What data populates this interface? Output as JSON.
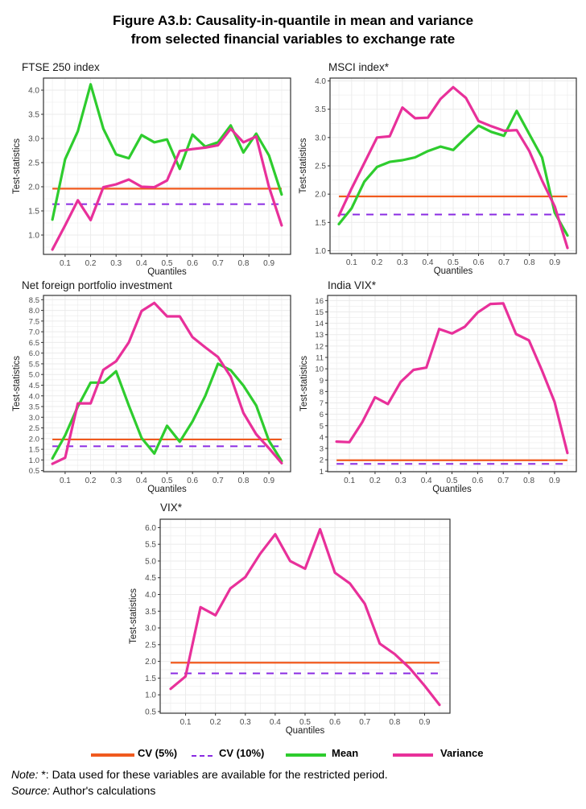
{
  "figure": {
    "title_line1": "Figure A3.b: Causality-in-quantile in mean and variance",
    "title_line2": "from selected financial variables to exchange rate"
  },
  "colors": {
    "cv5": "#f05a1e",
    "cv10": "#8a2be2",
    "mean": "#2ecc2e",
    "variance": "#e8309a",
    "grid": "#ebebeb",
    "axis_text": "#4d4d4d"
  },
  "legend": {
    "cv5": "CV (5%)",
    "cv10": "CV (10%)",
    "mean": "Mean",
    "variance": "Variance"
  },
  "note": {
    "label": "Note:",
    "text": " *: Data used for these variables are available for the restricted period."
  },
  "source": {
    "label": "Source:",
    "text": " Author's calculations"
  },
  "chart_data": [
    {
      "type": "line",
      "title": "FTSE 250 index",
      "xlabel": "Quantiles",
      "ylabel": "Test-statistics",
      "x": [
        0.05,
        0.1,
        0.15,
        0.2,
        0.25,
        0.3,
        0.35,
        0.4,
        0.45,
        0.5,
        0.55,
        0.6,
        0.65,
        0.7,
        0.75,
        0.8,
        0.85,
        0.9,
        0.95
      ],
      "xticks": [
        "0.1",
        "0.2",
        "0.3",
        "0.4",
        "0.5",
        "0.6",
        "0.7",
        "0.8",
        "0.9"
      ],
      "yticks": [
        "1.0",
        "1.5",
        "2.0",
        "2.5",
        "3.0",
        "3.5",
        "4.0"
      ],
      "ylim": [
        0.6,
        4.25
      ],
      "cv5": 1.96,
      "cv10": 1.64,
      "series": [
        {
          "name": "Mean",
          "values": [
            1.32,
            2.57,
            3.15,
            4.12,
            3.2,
            2.67,
            2.59,
            3.07,
            2.92,
            2.98,
            2.37,
            3.08,
            2.83,
            2.92,
            3.27,
            2.71,
            3.1,
            2.65,
            1.84
          ]
        },
        {
          "name": "Variance",
          "values": [
            0.7,
            1.2,
            1.72,
            1.31,
            1.99,
            2.05,
            2.15,
            2.0,
            1.99,
            2.13,
            2.74,
            2.78,
            2.81,
            2.86,
            3.2,
            2.92,
            3.04,
            2.0,
            1.2
          ]
        }
      ]
    },
    {
      "type": "line",
      "title": "MSCI index*",
      "xlabel": "Quantiles",
      "ylabel": "Test-statistics",
      "x": [
        0.05,
        0.1,
        0.15,
        0.2,
        0.25,
        0.3,
        0.35,
        0.4,
        0.45,
        0.5,
        0.55,
        0.6,
        0.65,
        0.7,
        0.75,
        0.8,
        0.85,
        0.9,
        0.95
      ],
      "xticks": [
        "0.1",
        "0.2",
        "0.3",
        "0.4",
        "0.5",
        "0.6",
        "0.7",
        "0.8",
        "0.9"
      ],
      "yticks": [
        "1.0",
        "1.5",
        "2.0",
        "2.5",
        "3.0",
        "3.5",
        "4.0"
      ],
      "ylim": [
        0.95,
        4.05
      ],
      "cv5": 1.96,
      "cv10": 1.64,
      "series": [
        {
          "name": "Mean",
          "values": [
            1.47,
            1.75,
            2.22,
            2.48,
            2.57,
            2.6,
            2.65,
            2.76,
            2.84,
            2.78,
            3.0,
            3.21,
            3.1,
            3.03,
            3.47,
            3.06,
            2.65,
            1.67,
            1.27
          ]
        },
        {
          "name": "Variance",
          "values": [
            1.62,
            2.1,
            2.55,
            3.0,
            3.02,
            3.53,
            3.34,
            3.35,
            3.68,
            3.89,
            3.7,
            3.29,
            3.2,
            3.12,
            3.13,
            2.76,
            2.24,
            1.78,
            1.05
          ]
        }
      ]
    },
    {
      "type": "line",
      "title": "Net foreign portfolio investment",
      "xlabel": "Quantiles",
      "ylabel": "Test-statistics",
      "x": [
        0.05,
        0.1,
        0.15,
        0.2,
        0.25,
        0.3,
        0.35,
        0.4,
        0.45,
        0.5,
        0.55,
        0.6,
        0.65,
        0.7,
        0.75,
        0.8,
        0.85,
        0.9,
        0.95
      ],
      "xticks": [
        "0.1",
        "0.2",
        "0.3",
        "0.4",
        "0.5",
        "0.6",
        "0.7",
        "0.8",
        "0.9"
      ],
      "yticks": [
        "0.5",
        "1.0",
        "1.5",
        "2.0",
        "2.5",
        "3.0",
        "3.5",
        "4.0",
        "4.5",
        "5.0",
        "5.5",
        "6.0",
        "6.5",
        "7.0",
        "7.5",
        "8.0",
        "8.5"
      ],
      "ylim": [
        0.45,
        8.7
      ],
      "cv5": 1.96,
      "cv10": 1.64,
      "series": [
        {
          "name": "Mean",
          "values": [
            1.07,
            2.15,
            3.5,
            4.62,
            4.62,
            5.15,
            3.55,
            2.03,
            1.3,
            2.6,
            1.85,
            2.8,
            4.0,
            5.5,
            5.2,
            4.48,
            3.55,
            1.9,
            0.95
          ]
        },
        {
          "name": "Variance",
          "values": [
            0.82,
            1.1,
            3.65,
            3.65,
            5.22,
            5.62,
            6.5,
            7.97,
            8.35,
            7.72,
            7.72,
            6.75,
            6.27,
            5.82,
            4.9,
            3.2,
            2.2,
            1.55,
            0.85
          ]
        }
      ]
    },
    {
      "type": "line",
      "title": "India VIX*",
      "xlabel": "Quantiles",
      "ylabel": "Test-statistics",
      "x": [
        0.05,
        0.1,
        0.15,
        0.2,
        0.25,
        0.3,
        0.35,
        0.4,
        0.45,
        0.5,
        0.55,
        0.6,
        0.65,
        0.7,
        0.75,
        0.8,
        0.85,
        0.9,
        0.95
      ],
      "xticks": [
        "0.1",
        "0.2",
        "0.3",
        "0.4",
        "0.5",
        "0.6",
        "0.7",
        "0.8",
        "0.9"
      ],
      "yticks": [
        "1",
        "2",
        "3",
        "4",
        "5",
        "6",
        "7",
        "8",
        "9",
        "10",
        "11",
        "12",
        "13",
        "14",
        "15",
        "16"
      ],
      "ylim": [
        0.95,
        16.45
      ],
      "cv5": 1.96,
      "cv10": 1.64,
      "series": [
        {
          "name": "Variance",
          "values": [
            3.6,
            3.55,
            5.3,
            7.5,
            6.9,
            8.85,
            9.9,
            10.1,
            13.5,
            13.1,
            13.7,
            14.95,
            15.7,
            15.75,
            13.05,
            12.5,
            9.9,
            7.1,
            2.6
          ]
        }
      ]
    },
    {
      "type": "line",
      "title": "VIX*",
      "xlabel": "Quantiles",
      "ylabel": "Test-statistics",
      "x": [
        0.05,
        0.1,
        0.15,
        0.2,
        0.25,
        0.3,
        0.35,
        0.4,
        0.45,
        0.5,
        0.55,
        0.6,
        0.65,
        0.7,
        0.75,
        0.8,
        0.85,
        0.9,
        0.95
      ],
      "xticks": [
        "0.1",
        "0.2",
        "0.3",
        "0.4",
        "0.5",
        "0.6",
        "0.7",
        "0.8",
        "0.9"
      ],
      "yticks": [
        "0.5",
        "1.0",
        "1.5",
        "2.0",
        "2.5",
        "3.0",
        "3.5",
        "4.0",
        "4.5",
        "5.0",
        "5.5",
        "6.0"
      ],
      "ylim": [
        0.45,
        6.25
      ],
      "cv5": 1.96,
      "cv10": 1.64,
      "series": [
        {
          "name": "Variance",
          "values": [
            1.18,
            1.55,
            3.62,
            3.38,
            4.18,
            4.52,
            5.22,
            5.8,
            5.0,
            4.77,
            5.95,
            4.65,
            4.33,
            3.72,
            2.53,
            2.22,
            1.8,
            1.27,
            0.7
          ]
        }
      ]
    }
  ]
}
